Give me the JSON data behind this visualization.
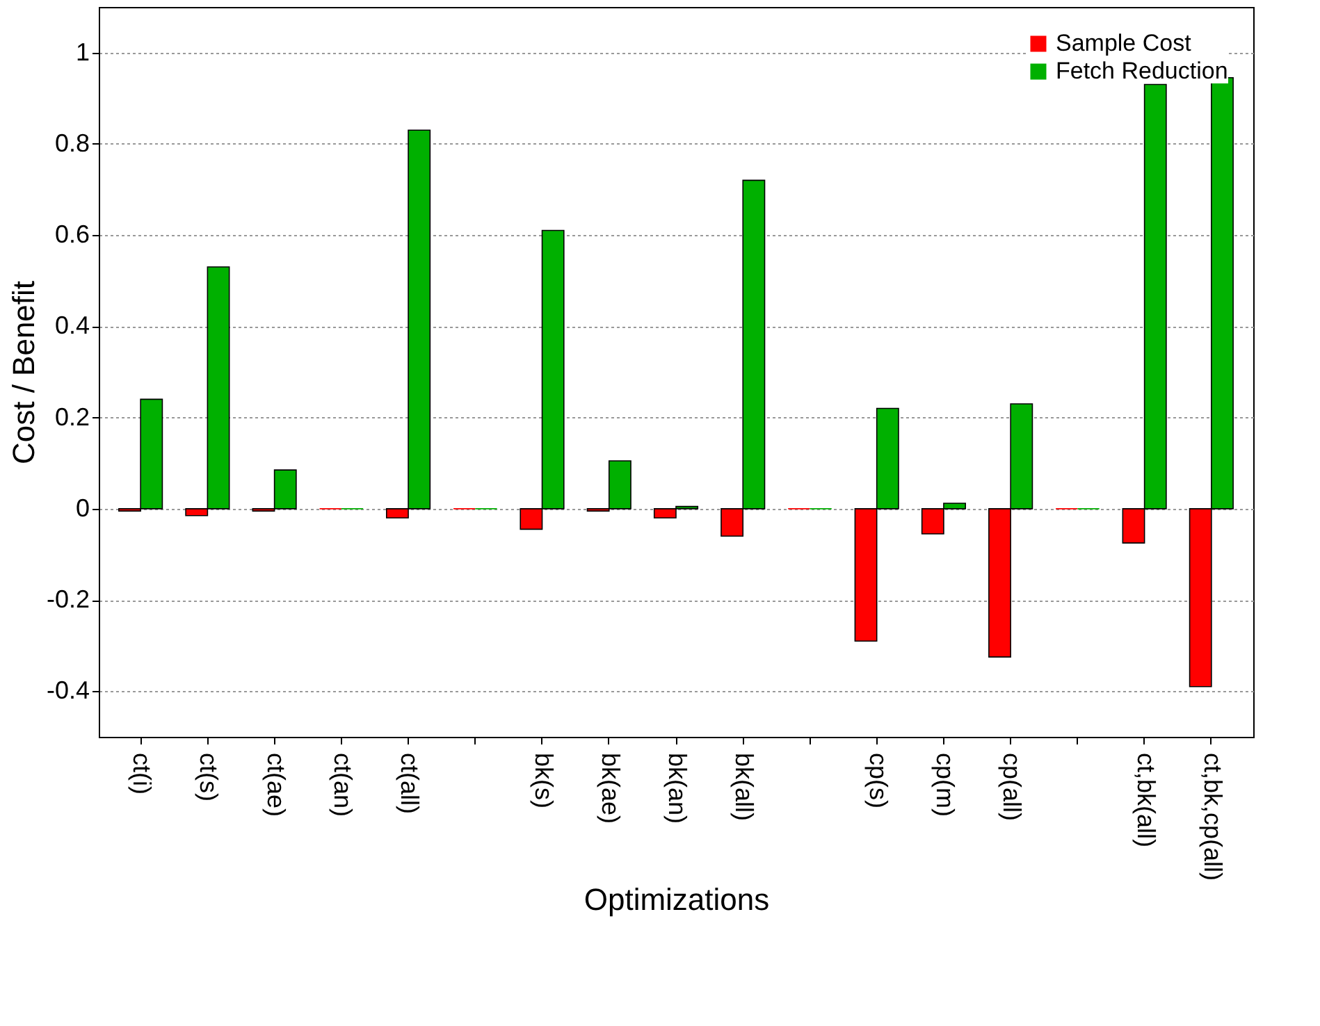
{
  "chart_data": {
    "type": "bar",
    "xlabel": "Optimizations",
    "ylabel": "Cost / Benefit",
    "categories": [
      "ct(i)",
      "ct(s)",
      "ct(ae)",
      "ct(an)",
      "ct(all)",
      null,
      "bk(s)",
      "bk(ae)",
      "bk(an)",
      "bk(all)",
      null,
      "cp(s)",
      "cp(m)",
      "cp(all)",
      null,
      "ct,bk(all)",
      "ct,bk,cp(all)"
    ],
    "series": [
      {
        "name": "Sample Cost",
        "color": "#ff0000",
        "values": [
          -0.005,
          -0.015,
          -0.005,
          0,
          -0.02,
          0,
          -0.045,
          -0.005,
          -0.02,
          -0.06,
          0,
          -0.29,
          -0.055,
          -0.325,
          0,
          -0.075,
          -0.39
        ]
      },
      {
        "name": "Fetch Reduction",
        "color": "#00b000",
        "values": [
          0.24,
          0.53,
          0.085,
          0,
          0.83,
          0,
          0.61,
          0.105,
          0.005,
          0.72,
          0,
          0.22,
          0.012,
          0.23,
          0,
          0.93,
          0.945
        ]
      }
    ],
    "ylim": [
      -0.5,
      1.1
    ],
    "yticks": [
      -0.4,
      -0.2,
      0,
      0.2,
      0.4,
      0.6,
      0.8,
      1
    ],
    "grid": "y",
    "legend": "top right"
  }
}
